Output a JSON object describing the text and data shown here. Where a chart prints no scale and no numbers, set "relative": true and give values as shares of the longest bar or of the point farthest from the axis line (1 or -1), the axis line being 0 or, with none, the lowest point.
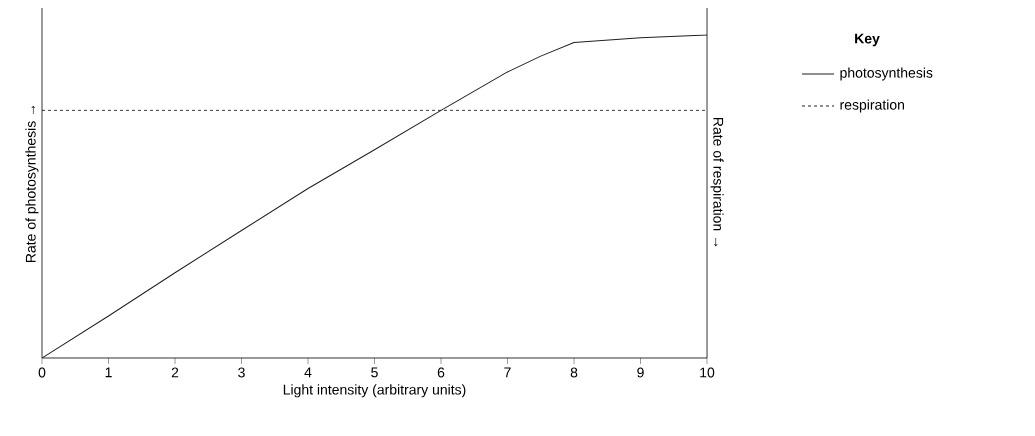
{
  "chart_data": {
    "type": "line",
    "relative": true,
    "xlabel": "Light intensity (arbitrary units)",
    "ylabel": "Rate of photosynthesis →",
    "y2label": "Rate of respiration →",
    "legend_title": "Key",
    "legend": "right",
    "grid": false,
    "xlim": [
      0,
      10
    ],
    "xticks": [
      0,
      1,
      2,
      3,
      4,
      5,
      6,
      7,
      8,
      9,
      10
    ],
    "series": [
      {
        "name": "photosynthesis",
        "color": "#231f20",
        "line_style": "solid",
        "x": [
          0,
          1,
          2,
          3,
          4,
          5,
          6,
          7,
          7.5,
          8,
          9,
          10
        ],
        "values": [
          0,
          0.13,
          0.264,
          0.395,
          0.525,
          0.645,
          0.767,
          0.886,
          0.935,
          0.977,
          0.992,
          1
        ]
      },
      {
        "name": "respiration",
        "color": "#231f20",
        "line_style": "dashed",
        "x": [
          0,
          10
        ],
        "values": [
          0.767,
          0.767
        ]
      }
    ]
  }
}
